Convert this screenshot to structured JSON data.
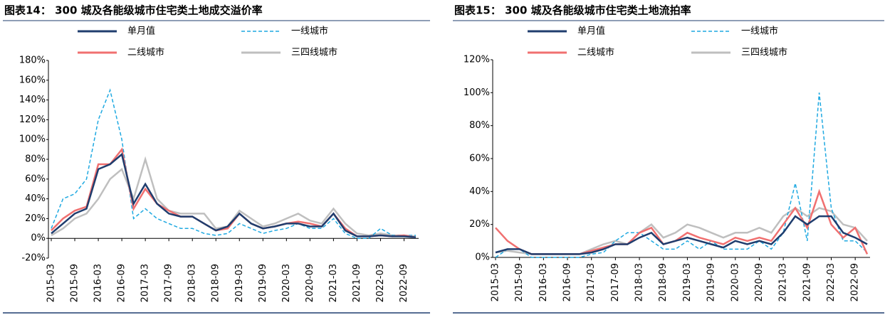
{
  "chart_data": [
    {
      "type": "line",
      "title": "图表14： 300 城及各能级城市住宅类土地成交溢价率",
      "categories": [
        "2015-03",
        null,
        "2015-09",
        null,
        "2016-03",
        null,
        "2016-09",
        null,
        "2017-03",
        null,
        "2017-09",
        null,
        "2018-03",
        null,
        "2018-09",
        null,
        "2019-03",
        null,
        "2019-09",
        null,
        "2020-03",
        null,
        "2020-09",
        null,
        "2021-03",
        null,
        "2021-09",
        null,
        "2022-03",
        null,
        "2022-09",
        null
      ],
      "ylim": [
        -20,
        180
      ],
      "yticks": [
        {
          "value": -20,
          "label": "-20%"
        },
        {
          "value": 0,
          "label": "0%"
        },
        {
          "value": 20,
          "label": "20%"
        },
        {
          "value": 40,
          "label": "40%"
        },
        {
          "value": 60,
          "label": "60%"
        },
        {
          "value": 80,
          "label": "80%"
        },
        {
          "value": 100,
          "label": "100%"
        },
        {
          "value": 120,
          "label": "120%"
        },
        {
          "value": 140,
          "label": "140%"
        },
        {
          "value": 160,
          "label": "160%"
        },
        {
          "value": 180,
          "label": "180%"
        }
      ],
      "series": [
        {
          "name": "单月值",
          "color": "#1f3d6e",
          "values": [
            5,
            15,
            25,
            30,
            70,
            75,
            85,
            35,
            55,
            35,
            25,
            22,
            22,
            15,
            8,
            12,
            25,
            15,
            10,
            12,
            15,
            15,
            12,
            12,
            25,
            8,
            2,
            2,
            3,
            2,
            2,
            1
          ]
        },
        {
          "name": "一线城市",
          "color": "#1fa9e1",
          "dashed": true,
          "values": [
            10,
            40,
            45,
            60,
            120,
            150,
            100,
            20,
            30,
            20,
            15,
            10,
            10,
            5,
            3,
            5,
            15,
            10,
            5,
            8,
            10,
            15,
            10,
            10,
            20,
            5,
            0,
            0,
            10,
            3,
            3,
            3
          ]
        },
        {
          "name": "二线城市",
          "color": "#f07070",
          "values": [
            8,
            20,
            28,
            32,
            75,
            75,
            90,
            30,
            50,
            35,
            28,
            22,
            22,
            15,
            8,
            10,
            25,
            15,
            10,
            12,
            15,
            17,
            15,
            12,
            25,
            10,
            2,
            2,
            3,
            2,
            3,
            1
          ]
        },
        {
          "name": "三四线城市",
          "color": "#bfbfbf",
          "values": [
            3,
            10,
            20,
            25,
            40,
            60,
            70,
            40,
            80,
            40,
            28,
            25,
            25,
            25,
            10,
            12,
            28,
            20,
            12,
            15,
            20,
            25,
            18,
            15,
            30,
            15,
            5,
            3,
            5,
            3,
            3,
            2
          ]
        }
      ]
    },
    {
      "type": "line",
      "title": "图表15： 300 城及各能级城市住宅类土地流拍率",
      "categories": [
        "2015-03",
        null,
        "2015-09",
        null,
        "2016-03",
        null,
        "2016-09",
        null,
        "2017-03",
        null,
        "2017-09",
        null,
        "2018-03",
        null,
        "2018-09",
        null,
        "2019-03",
        null,
        "2019-09",
        null,
        "2020-03",
        null,
        "2020-09",
        null,
        "2021-03",
        null,
        "2021-09",
        null,
        "2022-03",
        null,
        "2022-09",
        null
      ],
      "ylim": [
        0,
        120
      ],
      "yticks": [
        {
          "value": 0,
          "label": "0%"
        },
        {
          "value": 20,
          "label": "20%"
        },
        {
          "value": 40,
          "label": "40%"
        },
        {
          "value": 60,
          "label": "60%"
        },
        {
          "value": 80,
          "label": "80%"
        },
        {
          "value": 100,
          "label": "100%"
        },
        {
          "value": 120,
          "label": "120%"
        }
      ],
      "series": [
        {
          "name": "单月值",
          "color": "#1f3d6e",
          "values": [
            3,
            5,
            5,
            2,
            2,
            2,
            2,
            2,
            3,
            5,
            8,
            8,
            12,
            15,
            8,
            10,
            12,
            10,
            8,
            6,
            10,
            8,
            10,
            8,
            15,
            25,
            20,
            25,
            25,
            15,
            12,
            8
          ]
        },
        {
          "name": "一线城市",
          "color": "#1fa9e1",
          "dashed": true,
          "values": [
            0,
            5,
            5,
            0,
            0,
            0,
            0,
            0,
            2,
            3,
            10,
            15,
            15,
            10,
            5,
            5,
            10,
            5,
            10,
            5,
            5,
            5,
            10,
            5,
            15,
            45,
            10,
            100,
            30,
            10,
            10,
            3
          ]
        },
        {
          "name": "二线城市",
          "color": "#f07070",
          "values": [
            18,
            10,
            5,
            2,
            2,
            2,
            2,
            2,
            4,
            6,
            8,
            8,
            15,
            18,
            8,
            10,
            15,
            12,
            10,
            8,
            12,
            10,
            12,
            10,
            20,
            30,
            18,
            40,
            20,
            12,
            18,
            2
          ]
        },
        {
          "name": "三四线城市",
          "color": "#bfbfbf",
          "values": [
            3,
            4,
            3,
            2,
            2,
            2,
            2,
            2,
            5,
            8,
            10,
            8,
            15,
            20,
            12,
            15,
            20,
            18,
            15,
            12,
            15,
            15,
            18,
            15,
            25,
            30,
            25,
            30,
            28,
            20,
            18,
            10
          ]
        }
      ]
    }
  ]
}
